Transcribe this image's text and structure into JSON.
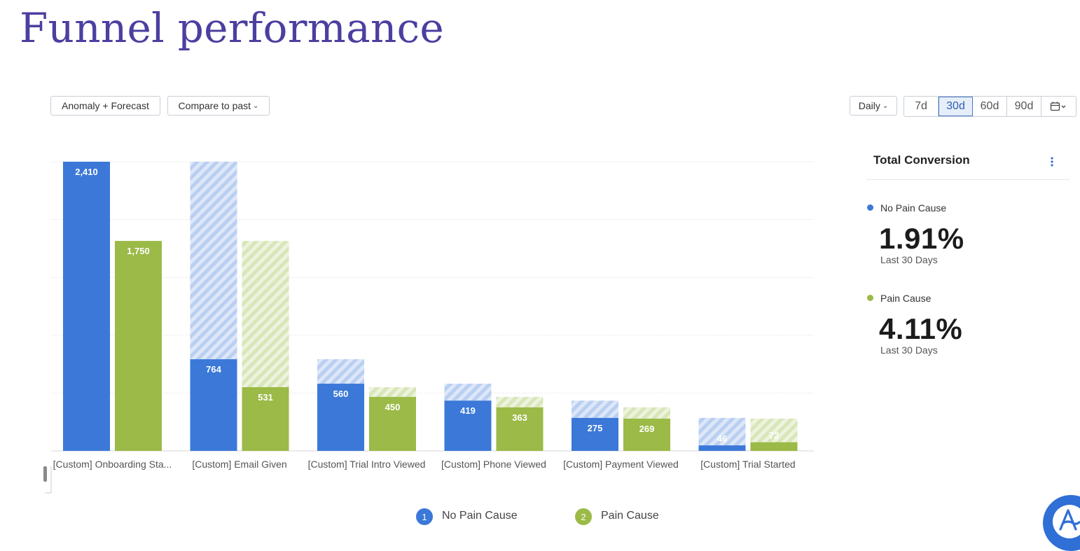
{
  "page": {
    "title": "Funnel performance"
  },
  "toolbar": {
    "anomaly_label": "Anomaly + Forecast",
    "compare_label": "Compare to past",
    "interval_label": "Daily",
    "ranges": [
      "7d",
      "30d",
      "60d",
      "90d"
    ],
    "active_range": "30d",
    "calendar_icon": "calendar-icon"
  },
  "colors": {
    "no_pain": "#3b78d8",
    "pain": "#9bba47",
    "no_pain_light": "#c3d5f3",
    "pain_light": "#e0ebc6",
    "title": "#4b3fa0"
  },
  "chart_data": {
    "type": "bar",
    "categories": [
      "[Custom] Onboarding Sta...",
      "[Custom] Email Given",
      "[Custom] Trial Intro Viewed",
      "[Custom] Phone Viewed",
      "[Custom] Payment Viewed",
      "[Custom] Trial Started"
    ],
    "series": [
      {
        "name": "No Pain Cause",
        "values": [
          2410,
          764,
          560,
          419,
          275,
          46
        ],
        "dropoff_from": [
          2410,
          2410,
          764,
          560,
          419,
          275
        ]
      },
      {
        "name": "Pain Cause",
        "values": [
          1750,
          531,
          450,
          363,
          269,
          72
        ],
        "dropoff_from": [
          1750,
          1750,
          531,
          450,
          363,
          269
        ]
      }
    ],
    "data_labels": [
      [
        "2,410",
        "764",
        "560",
        "419",
        "275",
        "46"
      ],
      [
        "1,750",
        "531",
        "450",
        "363",
        "269",
        "72"
      ]
    ],
    "grid": true,
    "legend": "bottom"
  },
  "legend": {
    "items": [
      {
        "number": "1",
        "label": "No Pain Cause"
      },
      {
        "number": "2",
        "label": "Pain Cause"
      }
    ]
  },
  "summary": {
    "title": "Total Conversion",
    "metrics": [
      {
        "name": "No Pain Cause",
        "value": "1.91%",
        "period": "Last 30 Days"
      },
      {
        "name": "Pain Cause",
        "value": "4.11%",
        "period": "Last 30 Days"
      }
    ]
  }
}
